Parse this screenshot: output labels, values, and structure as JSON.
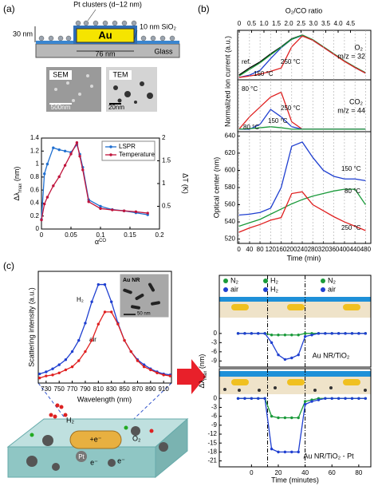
{
  "figure": {
    "panel_labels": [
      "(a)",
      "(b)",
      "(c)"
    ]
  },
  "schematic_a": {
    "pt": "Pt clusters (d~12 nm)",
    "sio2": "10 nm SiO₂",
    "height": "30 nm",
    "au": "Au",
    "width": "76 nm",
    "glass": "Glass",
    "sem": "SEM",
    "tem": "TEM",
    "sem_scale": "500nm",
    "tem_scale": "20nm"
  },
  "schematic_c": {
    "h2": "H₂",
    "o2": "O₂",
    "electron": "e⁻",
    "rod_charge": "+e⁻",
    "pt": "Pt"
  },
  "chart_data": [
    {
      "type": "line",
      "xlabel": [
        "α",
        "CO"
      ],
      "ylabel": [
        "Δλ",
        "max",
        " (nm)"
      ],
      "y2label": "ΔT (K)",
      "markers": true,
      "legend": "upper right",
      "xlim": [
        0,
        0.2
      ],
      "xticks": [
        0,
        0.05,
        0.1,
        0.15,
        0.2
      ],
      "ylim": [
        0,
        1.4
      ],
      "yticks": [
        0,
        0.2,
        0.4,
        0.6,
        0.8,
        1,
        1.2,
        1.4
      ],
      "y2lim": [
        0,
        2
      ],
      "y2ticks": [
        0.5,
        1,
        1.5,
        2
      ],
      "x": [
        0,
        0.005,
        0.01,
        0.02,
        0.03,
        0.04,
        0.05,
        0.06,
        0.065,
        0.07,
        0.08,
        0.1,
        0.12,
        0.14,
        0.16,
        0.18
      ],
      "series": [
        {
          "name": "LSPR",
          "color": "#1f6fd0",
          "values": [
            0.15,
            0.85,
            1.0,
            1.25,
            1.22,
            1.2,
            1.18,
            1.3,
            1.15,
            0.95,
            0.45,
            0.35,
            0.3,
            0.28,
            0.25,
            0.22
          ]
        },
        {
          "name": "Temperature",
          "color": "#c0143c",
          "axis": "y2",
          "values": [
            0.2,
            0.55,
            0.7,
            0.95,
            1.15,
            1.4,
            1.65,
            1.9,
            1.6,
            1.3,
            0.6,
            0.45,
            0.42,
            0.4,
            0.38,
            0.35
          ]
        }
      ]
    },
    {
      "type": "line",
      "ylabel": "Normalized ion current (a.u.)",
      "x2label": "O₂/CO ratio",
      "x2categories": [
        "0",
        "0.5",
        "1.0",
        "1.5",
        "2.0",
        "2.5",
        "3.0",
        "3.5",
        "4.0",
        "4.5"
      ],
      "gas": "O₂",
      "mz": "m/z = 32",
      "xlim": [
        -5,
        500
      ],
      "ylim": [
        0,
        1.05
      ],
      "x": [
        0,
        40,
        80,
        120,
        160,
        200,
        240,
        280,
        320,
        360,
        400,
        440,
        480
      ],
      "series": [
        {
          "name": "ref.",
          "color": "#000000",
          "values": [
            0.1,
            0.25,
            0.38,
            0.55,
            0.7,
            0.87,
            0.95,
            0.85,
            0.7,
            0.55,
            0.4,
            0.27,
            0.15
          ]
        },
        {
          "name": "150 °C",
          "color": "#1f3fd0",
          "values": [
            0.05,
            0.1,
            0.2,
            0.45,
            0.68,
            0.86,
            0.94,
            0.84,
            0.69,
            0.54,
            0.4,
            0.26,
            0.14
          ]
        },
        {
          "name": "80 °C",
          "color": "#1a9a3a",
          "values": [
            0.08,
            0.22,
            0.36,
            0.53,
            0.69,
            0.86,
            0.95,
            0.85,
            0.7,
            0.55,
            0.4,
            0.27,
            0.15
          ]
        },
        {
          "name": "250 °C",
          "color": "#e02020",
          "values": [
            0.05,
            0.08,
            0.12,
            0.18,
            0.25,
            0.7,
            0.93,
            0.84,
            0.69,
            0.54,
            0.39,
            0.26,
            0.14
          ]
        }
      ]
    },
    {
      "type": "line",
      "gas": "CO₂",
      "mz": "m/z = 44",
      "xlim": [
        -5,
        500
      ],
      "ylim": [
        0,
        1.05
      ],
      "x": [
        0,
        40,
        80,
        120,
        160,
        200,
        240,
        280,
        320,
        360,
        400,
        440,
        480
      ],
      "series": [
        {
          "name": "250 °C",
          "color": "#e02020",
          "values": [
            0.05,
            0.3,
            0.5,
            0.7,
            0.8,
            0.2,
            0.05,
            0.05,
            0.05,
            0.05,
            0.05,
            0.05,
            0.05
          ]
        },
        {
          "name": "150 °C",
          "color": "#1f3fd0",
          "values": [
            0.05,
            0.05,
            0.15,
            0.45,
            0.3,
            0.1,
            0.05,
            0.05,
            0.05,
            0.05,
            0.05,
            0.05,
            0.05
          ]
        },
        {
          "name": "80 °C",
          "color": "#1a9a3a",
          "values": [
            0.05,
            0.06,
            0.08,
            0.1,
            0.08,
            0.05,
            0.05,
            0.05,
            0.05,
            0.05,
            0.05,
            0.05,
            0.05
          ]
        }
      ]
    },
    {
      "type": "line",
      "xlabel": "Time (min)",
      "ylabel": "Optical center (nm)",
      "grid": true,
      "xlim": [
        -5,
        500
      ],
      "xticks": [
        0,
        40,
        80,
        120,
        160,
        200,
        240,
        280,
        320,
        360,
        400,
        440,
        480
      ],
      "ylim": [
        515,
        645
      ],
      "yticks": [
        520,
        540,
        560,
        580,
        600,
        620,
        640
      ],
      "x": [
        0,
        40,
        80,
        120,
        160,
        200,
        240,
        280,
        320,
        360,
        400,
        440,
        480
      ],
      "series": [
        {
          "name": "150 °C",
          "color": "#1f3fd0",
          "values": [
            548,
            549,
            551,
            556,
            580,
            628,
            633,
            615,
            600,
            593,
            590,
            590,
            588
          ]
        },
        {
          "name": "80 °C",
          "color": "#1a9a3a",
          "values": [
            535,
            539,
            543,
            549,
            555,
            561,
            566,
            570,
            573,
            576,
            578,
            578,
            560
          ]
        },
        {
          "name": "250 °C",
          "color": "#e02020",
          "values": [
            528,
            533,
            537,
            542,
            545,
            573,
            575,
            560,
            553,
            546,
            540,
            535,
            530
          ]
        }
      ]
    },
    {
      "type": "line",
      "markers": true,
      "xlabel": "Wavelength (nm)",
      "ylabel": "Scattering intensity (a.u.)",
      "inset": {
        "label": "Au NR",
        "scale": "50 nm"
      },
      "xlim": [
        718,
        922
      ],
      "xticks": [
        730,
        750,
        770,
        790,
        810,
        830,
        850,
        870,
        890,
        910
      ],
      "ylim": [
        0,
        1.1
      ],
      "x": [
        720,
        730,
        740,
        750,
        760,
        770,
        780,
        790,
        800,
        810,
        820,
        830,
        840,
        850,
        860,
        870,
        880,
        890,
        900,
        910,
        920
      ],
      "series": [
        {
          "name": "H₂",
          "color": "#1f3fd0",
          "values": [
            0.09,
            0.11,
            0.14,
            0.18,
            0.23,
            0.31,
            0.42,
            0.59,
            0.8,
            0.97,
            0.97,
            0.8,
            0.59,
            0.42,
            0.31,
            0.23,
            0.18,
            0.14,
            0.11,
            0.09,
            0.08
          ]
        },
        {
          "name": "air",
          "color": "#e02020",
          "values": [
            0.05,
            0.07,
            0.08,
            0.1,
            0.13,
            0.16,
            0.22,
            0.31,
            0.42,
            0.58,
            0.7,
            0.7,
            0.58,
            0.42,
            0.31,
            0.22,
            0.16,
            0.13,
            0.1,
            0.08,
            0.07
          ]
        }
      ]
    },
    {
      "type": "line",
      "markers": true,
      "ylabel": [
        "Δλ",
        "max",
        " (nm)"
      ],
      "sample": "Au NR/TiO₂",
      "xlim": [
        -24,
        89
      ],
      "ylim": [
        -11,
        19
      ],
      "yticks": [
        0,
        -3,
        -6,
        -9
      ],
      "vlines": [
        12,
        40
      ],
      "x": [
        -10,
        -5,
        0,
        5,
        10,
        15,
        20,
        25,
        30,
        35,
        40,
        45,
        50,
        55,
        60,
        65,
        70,
        75,
        80,
        85
      ],
      "series": [
        {
          "color": "#1a9a3a",
          "labels": [
            "N₂",
            "H₂",
            "N₂"
          ],
          "values": [
            0,
            0,
            0,
            0,
            0,
            -0.5,
            -0.5,
            -0.5,
            -0.5,
            -0.5,
            0,
            0,
            0,
            0,
            0,
            0,
            0,
            0,
            0,
            0
          ]
        },
        {
          "color": "#1f3fd0",
          "labels": [
            "air",
            "H₂",
            "air"
          ],
          "values": [
            0,
            0,
            0,
            0,
            0,
            -3,
            -7,
            -8.5,
            -8,
            -7,
            -1,
            -0.5,
            0,
            0,
            0,
            0,
            0,
            0,
            0,
            0
          ]
        }
      ]
    },
    {
      "type": "line",
      "markers": true,
      "sample": "Au NR/TiO₂ - Pt",
      "xlabel": "Time (minutes)",
      "xlim": [
        -24,
        89
      ],
      "xticks": [
        0,
        20,
        40,
        60,
        80
      ],
      "ylim": [
        -23,
        10
      ],
      "yticks": [
        0,
        -3,
        -6,
        -9,
        -12,
        -15,
        -18,
        -21
      ],
      "vlines": [
        12,
        40
      ],
      "x": [
        -10,
        -5,
        0,
        5,
        10,
        15,
        20,
        25,
        30,
        35,
        40,
        45,
        50,
        55,
        60,
        65,
        70,
        75,
        80,
        85
      ],
      "series": [
        {
          "color": "#1a9a3a",
          "values": [
            0,
            0,
            0,
            0,
            0,
            -6,
            -6.5,
            -6.5,
            -6.5,
            -6.5,
            -1,
            -0.5,
            0,
            0,
            0,
            0,
            0,
            0,
            0,
            0
          ]
        },
        {
          "color": "#1f3fd0",
          "values": [
            0,
            0,
            0,
            0,
            0,
            -17,
            -18,
            -18,
            -18,
            -18,
            -2,
            -1,
            -0.5,
            0,
            0,
            0,
            0,
            0,
            0,
            0
          ]
        }
      ]
    }
  ]
}
